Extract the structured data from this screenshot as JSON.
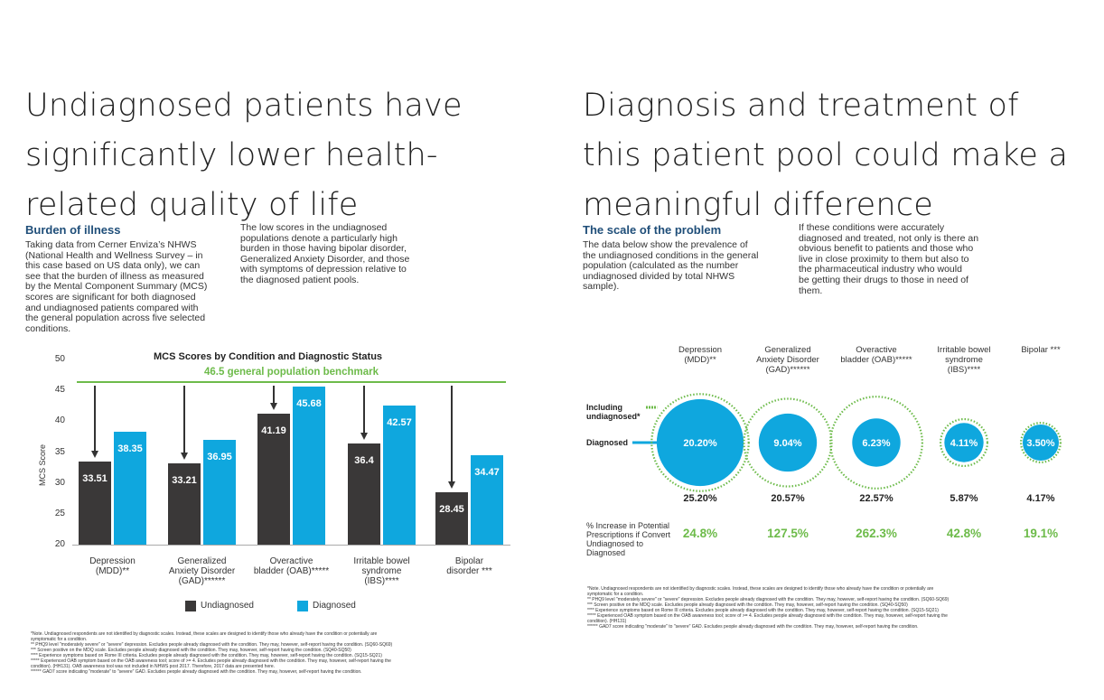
{
  "left": {
    "title_lines": [
      "Undiagnosed patients have",
      "significantly lower health-",
      "related quality of life"
    ],
    "subheading": "Burden of illness",
    "para1_lines": [
      "Taking data from Cerner Enviza’s NHWS",
      "(National Health and Wellness Survey – in",
      "this case based on US data only), we can",
      "see that the burden of illness as measured",
      "by the Mental Component Summary (MCS)",
      "scores are significant for both diagnosed",
      "and undiagnosed patients compared with",
      "the general population across five selected",
      "conditions."
    ],
    "para2_lines": [
      "The low scores in the undiagnosed",
      "populations denote a particularly high",
      "burden in those having bipolar disorder,",
      "Generalized Anxiety Disorder, and those",
      "with symptoms of depression relative to",
      "the diagnosed patient pools."
    ],
    "notes": [
      "*Note. Undiagnosed respondents are not identified by diagnostic scales. Instead, these scales are designed to identify those who already have the condition or potentially are",
      "symptomatic for a condition.",
      "** PHQ9 level \"moderately severe\" or \"severe\" depression.  Excludes people already diagnosed with the condition.  They may, however, self-report having the condition. (SQ60-SQ69)",
      "*** Screen positive on the MDQ scale.  Excludes people already diagnosed with the condition.  They may, however, self-report having the condition. (SQ40-SQ50)",
      "**** Experience symptoms based on Rome III criteria.  Excludes people already diagnosed with the condition.  They may, however, self-report having the condition. (SQ15-SQ21)",
      "***** Experienced OAB symptom based on the OAB awareness tool; score of >= 4.  Excludes people already diagnosed with the condition.  They may, however, self-report having the",
      "condition). (HH131). OAB awareness tool was not included in NHWS post 2017. Therefore, 2017 data are presented here.",
      "****** GAD7 score indicating \"moderate\" to \"severe\" GAD.  Excludes people already diagnosed with the condition.  They may, however, self-report having the condition."
    ]
  },
  "right": {
    "title_lines": [
      "Diagnosis and treatment of",
      "this patient pool could make a",
      "meaningful difference"
    ],
    "subheading": "The scale of the problem",
    "para1_lines": [
      "The data below show the prevalence of",
      "the undiagnosed conditions in the general",
      "population (calculated as the number",
      "undiagnosed divided by total NHWS",
      "sample)."
    ],
    "para2_lines": [
      "If these conditions were accurately",
      "diagnosed and treated, not only is there an",
      "obvious benefit to patients and those who",
      "live in close proximity to them but also to",
      "the pharmaceutical industry who would",
      "be getting their drugs to those in need of",
      "them."
    ],
    "row_label_including": [
      "Including",
      "undiagnosed*"
    ],
    "row_label_diagnosed": "Diagnosed",
    "row_label_increase": [
      "% Increase in Potential",
      "Prescriptions if Convert",
      "Undiagnosed to",
      "Diagnosed"
    ],
    "notes": [
      "*Note. Undiagnosed respondents are not identified by diagnostic scales. Instead, these scales are designed to identify those who already have the condition or potentially are",
      "symptomatic for a condition.",
      "** PHQ9 level \"moderately severe\" or \"severe\" depression.  Excludes people already diagnosed with the condition.  They may, however, self-report having the condition. (SQ60-SQ69)",
      "*** Screen positive on the MDQ scale.  Excludes people already diagnosed with the condition.  They may, however, self-report having the condition. (SQ40-SQ50)",
      "**** Experience symptoms based on Rome III criteria.  Excludes people already diagnosed with the condition.  They may, however, self-report having the condition. (SQ15-SQ21)",
      "***** Experienced OAB symptom based on the OAB awareness tool; score of >= 4.  Excludes people already diagnosed with the condition.  They may, however, self-report having the",
      "condition). (HH131)",
      "****** GAD7 score indicating \"moderate\" to \"severe\" GAD.  Excludes people already diagnosed with the condition.  They may, however, self-report having the condition."
    ]
  },
  "colors": {
    "undiagnosed": "#3a3838",
    "diagnosed": "#0fa7de",
    "benchmark": "#6dbb4a",
    "heading": "#1f4e79"
  },
  "chart_data": [
    {
      "type": "bar",
      "title": "MCS Scores by Condition and Diagnostic Status",
      "ylabel": "MCS Score",
      "ylim": [
        20,
        50
      ],
      "yticks": [
        "50",
        "45",
        "40",
        "35",
        "30",
        "25",
        "20"
      ],
      "categories": [
        [
          "Depression",
          "(MDD)**"
        ],
        [
          "Generalized",
          "Anxiety Disorder",
          "(GAD)******"
        ],
        [
          "Overactive",
          "bladder (OAB)*****"
        ],
        [
          "Irritable bowel",
          "syndrome",
          "(IBS)****"
        ],
        [
          "Bipolar",
          "disorder ***"
        ]
      ],
      "series": [
        {
          "name": "Undiagnosed",
          "values": [
            33.51,
            33.21,
            41.19,
            36.4,
            28.45
          ],
          "labels": [
            "33.51",
            "33.21",
            "41.19",
            "36.4",
            "28.45"
          ]
        },
        {
          "name": "Diagnosed",
          "values": [
            38.35,
            36.95,
            45.68,
            42.57,
            34.47
          ],
          "labels": [
            "38.35",
            "36.95",
            "45.68",
            "42.57",
            "34.47"
          ]
        }
      ],
      "benchmark": {
        "value": 46.5,
        "label": "46.5 general population benchmark"
      },
      "legend": "bottom"
    },
    {
      "type": "bubble",
      "categories": [
        [
          "Depression",
          "(MDD)**"
        ],
        [
          "Generalized",
          "Anxiety Disorder",
          "(GAD)******"
        ],
        [
          "Overactive",
          "bladder (OAB)*****"
        ],
        [
          "Irritable bowel",
          "syndrome",
          "(IBS)****"
        ],
        [
          "Bipolar ***"
        ]
      ],
      "diagnosed": [
        20.2,
        9.04,
        6.23,
        4.11,
        3.5
      ],
      "diagnosed_labels": [
        "20.20%",
        "9.04%",
        "6.23%",
        "4.11%",
        "3.50%"
      ],
      "including_undiagnosed": [
        25.2,
        20.57,
        22.57,
        5.87,
        4.17
      ],
      "including_labels": [
        "25.20%",
        "20.57%",
        "22.57%",
        "5.87%",
        "4.17%"
      ],
      "increase": [
        24.8,
        127.5,
        262.3,
        42.8,
        19.1
      ],
      "increase_labels": [
        "24.8%",
        "127.5%",
        "262.3%",
        "42.8%",
        "19.1%"
      ]
    }
  ]
}
